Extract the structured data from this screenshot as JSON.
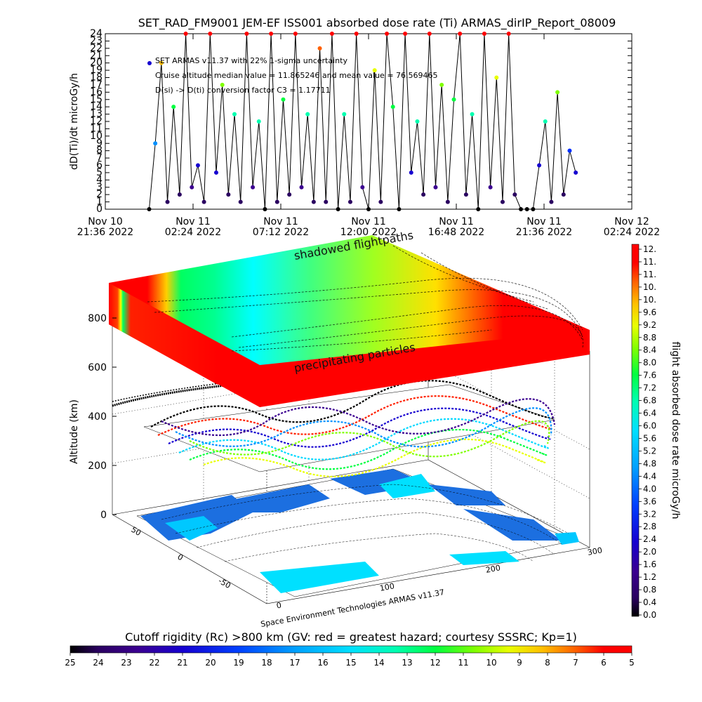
{
  "title": "SET_RAD_FM9001  JEM-EF ISS001 absorbed dose rate (Ti) ARMAS_dirIP_Report_08009",
  "top_chart": {
    "ylabel": "dD(Ti)/dt microGy/h",
    "annotations": [
      "SET ARMAS v11.37 with 22% 1-sigma uncertainty",
      "Cruise altitude median value = 11.865246 and mean value = 76.569465",
      "D(si) -> D(ti) conversion factor C3 = 1.17711"
    ],
    "x_ticks": [
      {
        "line1": "Nov 10",
        "line2": "21:36 2022"
      },
      {
        "line1": "Nov 11",
        "line2": "02:24 2022"
      },
      {
        "line1": "Nov 11",
        "line2": "07:12 2022"
      },
      {
        "line1": "Nov 11",
        "line2": "12:00 2022"
      },
      {
        "line1": "Nov 11",
        "line2": "16:48 2022"
      },
      {
        "line1": "Nov 11",
        "line2": "21:36 2022"
      },
      {
        "line1": "Nov 12",
        "line2": "02:24 2022"
      }
    ],
    "y_ticks": [
      "0",
      "1",
      "2",
      "3",
      "4",
      "5",
      "6",
      "7",
      "8",
      "9",
      "10",
      "11",
      "12",
      "13",
      "14",
      "15",
      "16",
      "17",
      "18",
      "19",
      "20",
      "21",
      "22",
      "23",
      "24"
    ]
  },
  "plot3d": {
    "ylabel": "Altitude (km)",
    "z_ticks": [
      "0",
      "200",
      "400",
      "600",
      "800"
    ],
    "lat_ticks": [
      "50",
      "0",
      "-50"
    ],
    "lon_ticks": [
      "0",
      "100",
      "200",
      "300"
    ],
    "label_shadowed": "shadowed flightpaths",
    "label_precip": "precipitating particles",
    "credit": "Space Environment Technologies ARMAS v11.37"
  },
  "colorbar_right": {
    "label": "flight absorbed dose rate microGy/h",
    "ticks": [
      "12.",
      "11.",
      "11.",
      "10.",
      "10.",
      "9.6",
      "9.2",
      "8.8",
      "8.4",
      "8.0",
      "7.6",
      "7.2",
      "6.8",
      "6.4",
      "6.0",
      "5.6",
      "5.2",
      "4.8",
      "4.4",
      "4.0",
      "3.6",
      "3.2",
      "2.8",
      "2.4",
      "2.0",
      "1.6",
      "1.2",
      "0.8",
      "0.4",
      "0.0"
    ]
  },
  "colorbar_bottom": {
    "label": "Cutoff rigidity (Rc) >800 km (GV: red = greatest hazard; courtesy SSSRC; Kp=1)",
    "ticks": [
      "25",
      "24",
      "23",
      "22",
      "21",
      "20",
      "19",
      "18",
      "17",
      "16",
      "15",
      "14",
      "13",
      "12",
      "11",
      "10",
      "9",
      "8",
      "7",
      "6",
      "5"
    ]
  },
  "colors": {
    "rainbow": [
      "#000000",
      "#2a0060",
      "#3b0090",
      "#1600d0",
      "#0030ff",
      "#0090ff",
      "#00d8ff",
      "#00ffb0",
      "#00ff40",
      "#80ff00",
      "#e8ff00",
      "#ffc000",
      "#ff6000",
      "#ff0000"
    ]
  },
  "chart_data": {
    "type": "line",
    "title": "SET_RAD_FM9001  JEM-EF ISS001 absorbed dose rate (Ti) ARMAS_dirIP_Report_08009",
    "xlabel": "",
    "ylabel": "dD(Ti)/dt microGy/h",
    "ylim": [
      0,
      24
    ],
    "xlim": [
      "2022-11-10 21:36",
      "2022-11-12 02:24"
    ],
    "grid": false,
    "series": [
      {
        "x": [
          "2022-11-11 00:00",
          "2022-11-11 00:20",
          "2022-11-11 00:40",
          "2022-11-11 01:00",
          "2022-11-11 01:20",
          "2022-11-11 01:40",
          "2022-11-11 02:00",
          "2022-11-11 02:20",
          "2022-11-11 02:40",
          "2022-11-11 03:00",
          "2022-11-11 03:20",
          "2022-11-11 03:40",
          "2022-11-11 04:00",
          "2022-11-11 04:20",
          "2022-11-11 04:40",
          "2022-11-11 05:00",
          "2022-11-11 05:20",
          "2022-11-11 05:40",
          "2022-11-11 06:00",
          "2022-11-11 06:20",
          "2022-11-11 06:40",
          "2022-11-11 07:00",
          "2022-11-11 07:20",
          "2022-11-11 07:40",
          "2022-11-11 08:00",
          "2022-11-11 08:20",
          "2022-11-11 08:40",
          "2022-11-11 09:00",
          "2022-11-11 09:20",
          "2022-11-11 09:40",
          "2022-11-11 10:00",
          "2022-11-11 10:20",
          "2022-11-11 10:40",
          "2022-11-11 11:00",
          "2022-11-11 11:20",
          "2022-11-11 11:40",
          "2022-11-11 12:00",
          "2022-11-11 12:20",
          "2022-11-11 12:40",
          "2022-11-11 13:00",
          "2022-11-11 13:20",
          "2022-11-11 13:40",
          "2022-11-11 14:00",
          "2022-11-11 14:20",
          "2022-11-11 14:40",
          "2022-11-11 15:00",
          "2022-11-11 15:20",
          "2022-11-11 15:40",
          "2022-11-11 16:00",
          "2022-11-11 16:20",
          "2022-11-11 16:40",
          "2022-11-11 17:00",
          "2022-11-11 17:20",
          "2022-11-11 17:40",
          "2022-11-11 18:00",
          "2022-11-11 18:20",
          "2022-11-11 18:40",
          "2022-11-11 19:00",
          "2022-11-11 19:20",
          "2022-11-11 19:40",
          "2022-11-11 20:00",
          "2022-11-11 20:20",
          "2022-11-11 20:40",
          "2022-11-11 21:00",
          "2022-11-11 21:20",
          "2022-11-11 21:40",
          "2022-11-11 22:00",
          "2022-11-11 22:20",
          "2022-11-11 22:40",
          "2022-11-11 23:00",
          "2022-11-11 23:20"
        ],
        "values": [
          0,
          9,
          20,
          1,
          14,
          2,
          24,
          3,
          6,
          1,
          24,
          5,
          17,
          2,
          13,
          1,
          24,
          3,
          12,
          0,
          24,
          1,
          15,
          2,
          24,
          3,
          13,
          1,
          22,
          1,
          24,
          0,
          13,
          1,
          24,
          3,
          0,
          19,
          1,
          24,
          14,
          0,
          24,
          5,
          12,
          2,
          24,
          3,
          17,
          1,
          15,
          24,
          2,
          13,
          0,
          24,
          3,
          18,
          1,
          24,
          2,
          0,
          0,
          0,
          6,
          12,
          1,
          16,
          2,
          8,
          5
        ]
      }
    ]
  }
}
